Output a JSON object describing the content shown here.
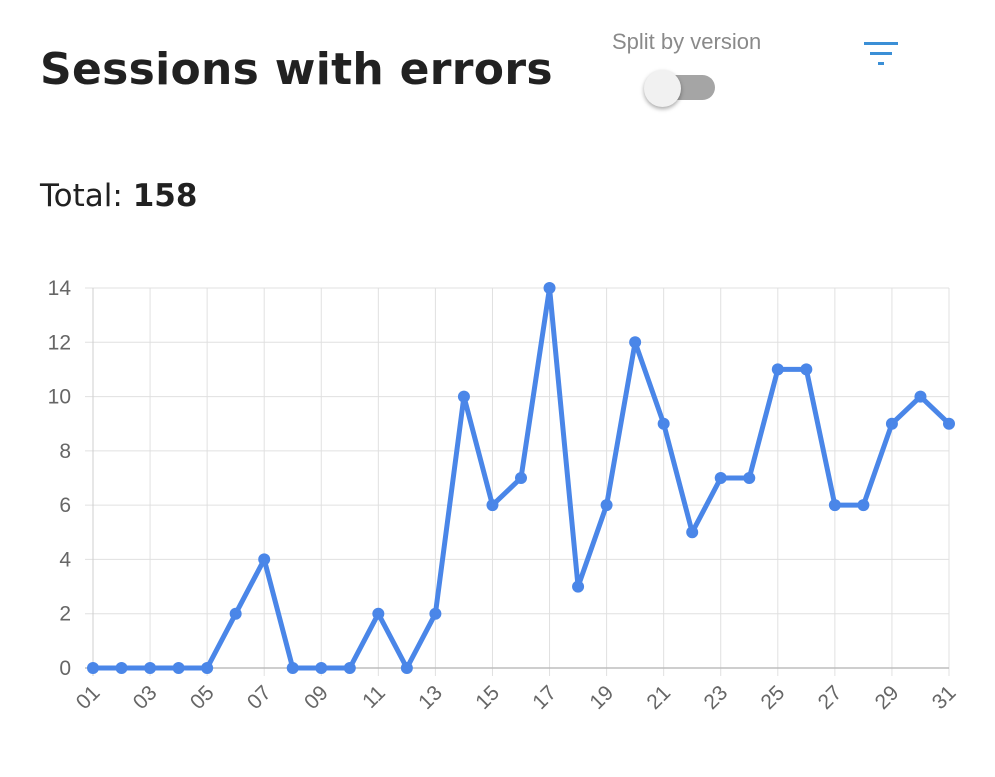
{
  "header": {
    "title": "Sessions with errors",
    "split_label": "Split by version",
    "split_enabled": false
  },
  "summary": {
    "total_label": "Total:",
    "total_value": "158"
  },
  "icons": {
    "filter": "filter-icon"
  },
  "colors": {
    "line": "#4a86e8",
    "accent": "#3b8fd6",
    "grid": "#e0e0e0",
    "axis_text": "#666666",
    "toggle_track": "#a5a5a5",
    "toggle_thumb": "#f1f1f1"
  },
  "chart_data": {
    "type": "line",
    "title": "",
    "xlabel": "",
    "ylabel": "",
    "x": [
      "01",
      "02",
      "03",
      "04",
      "05",
      "06",
      "07",
      "08",
      "09",
      "10",
      "11",
      "12",
      "13",
      "14",
      "15",
      "16",
      "17",
      "18",
      "19",
      "20",
      "21",
      "22",
      "23",
      "24",
      "25",
      "26",
      "27",
      "28",
      "29",
      "30",
      "31"
    ],
    "x_tick_labels": [
      "01",
      "03",
      "05",
      "07",
      "09",
      "11",
      "13",
      "15",
      "17",
      "19",
      "21",
      "23",
      "25",
      "27",
      "29",
      "31"
    ],
    "series": [
      {
        "values": [
          0,
          0,
          0,
          0,
          0,
          2,
          4,
          0,
          0,
          0,
          2,
          0,
          2,
          10,
          6,
          7,
          14,
          3,
          6,
          12,
          9,
          5,
          7,
          7,
          11,
          11,
          6,
          6,
          9,
          10,
          9
        ]
      }
    ],
    "ylim": [
      0,
      14
    ],
    "y_ticks": [
      0,
      2,
      4,
      6,
      8,
      10,
      12,
      14
    ],
    "grid": true,
    "legend": "none"
  }
}
